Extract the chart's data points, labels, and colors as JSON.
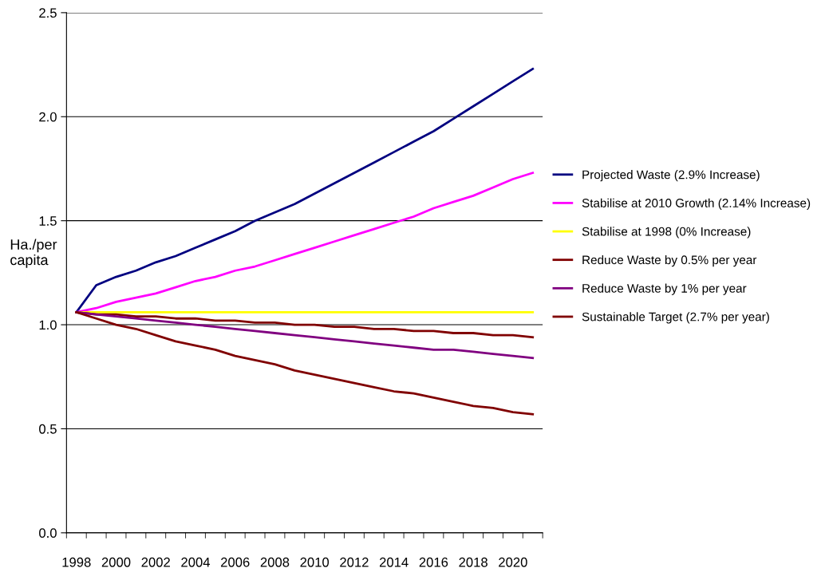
{
  "chart_data": {
    "type": "line",
    "ylabel": "Ha./per capita",
    "categories": [
      "1998",
      null,
      "2000",
      null,
      "2002",
      null,
      "2004",
      null,
      "2006",
      null,
      "2008",
      null,
      "2010",
      null,
      "2012",
      null,
      "2014",
      null,
      "2016",
      null,
      "2018",
      null,
      "2020",
      null
    ],
    "ylim": [
      0,
      2.5
    ],
    "yticks": [
      {
        "value": 0,
        "label": "0.0"
      },
      {
        "value": 0.5,
        "label": "0.5"
      },
      {
        "value": 1,
        "label": "1.0"
      },
      {
        "value": 1.5,
        "label": "1.5"
      },
      {
        "value": 2,
        "label": "2.0"
      },
      {
        "value": 2.5,
        "label": "2.5"
      }
    ],
    "grid": "y",
    "legend": "right",
    "marker": "none",
    "line_style": "solid",
    "series": [
      {
        "name": "Projected Waste (2.9% Increase)",
        "color": "#000080",
        "values": [
          1.06,
          1.19,
          1.23,
          1.26,
          1.3,
          1.33,
          1.37,
          1.41,
          1.45,
          1.5,
          1.54,
          1.58,
          1.63,
          1.68,
          1.73,
          1.78,
          1.83,
          1.88,
          1.93,
          1.99,
          2.05,
          2.11,
          2.17,
          2.23
        ]
      },
      {
        "name": "Stabilise at 2010 Growth (2.14% Increase)",
        "color": "#ff00ff",
        "values": [
          1.06,
          1.08,
          1.11,
          1.13,
          1.15,
          1.18,
          1.21,
          1.23,
          1.26,
          1.28,
          1.31,
          1.34,
          1.37,
          1.4,
          1.43,
          1.46,
          1.49,
          1.52,
          1.56,
          1.59,
          1.62,
          1.66,
          1.7,
          1.73
        ]
      },
      {
        "name": "Stabilise at 1998 (0% Increase)",
        "color": "#ffff00",
        "values": [
          1.06,
          1.06,
          1.06,
          1.06,
          1.06,
          1.06,
          1.06,
          1.06,
          1.06,
          1.06,
          1.06,
          1.06,
          1.06,
          1.06,
          1.06,
          1.06,
          1.06,
          1.06,
          1.06,
          1.06,
          1.06,
          1.06,
          1.06,
          1.06
        ]
      },
      {
        "name": "Reduce Waste by 0.5% per year",
        "color": "#800000",
        "values": [
          1.06,
          1.05,
          1.05,
          1.04,
          1.04,
          1.03,
          1.03,
          1.02,
          1.02,
          1.01,
          1.01,
          1.0,
          1.0,
          0.99,
          0.99,
          0.98,
          0.98,
          0.97,
          0.97,
          0.96,
          0.96,
          0.95,
          0.95,
          0.94
        ]
      },
      {
        "name": "Reduce Waste by 1% per year",
        "color": "#800080",
        "values": [
          1.06,
          1.05,
          1.04,
          1.03,
          1.02,
          1.01,
          1.0,
          0.99,
          0.98,
          0.97,
          0.96,
          0.95,
          0.94,
          0.93,
          0.92,
          0.91,
          0.9,
          0.89,
          0.88,
          0.88,
          0.87,
          0.86,
          0.85,
          0.84
        ]
      },
      {
        "name": "Sustainable Target (2.7% per year)",
        "color": "#800000",
        "values": [
          1.06,
          1.03,
          1.0,
          0.98,
          0.95,
          0.92,
          0.9,
          0.88,
          0.85,
          0.83,
          0.81,
          0.78,
          0.76,
          0.74,
          0.72,
          0.7,
          0.68,
          0.67,
          0.65,
          0.63,
          0.61,
          0.6,
          0.58,
          0.57
        ]
      }
    ]
  }
}
